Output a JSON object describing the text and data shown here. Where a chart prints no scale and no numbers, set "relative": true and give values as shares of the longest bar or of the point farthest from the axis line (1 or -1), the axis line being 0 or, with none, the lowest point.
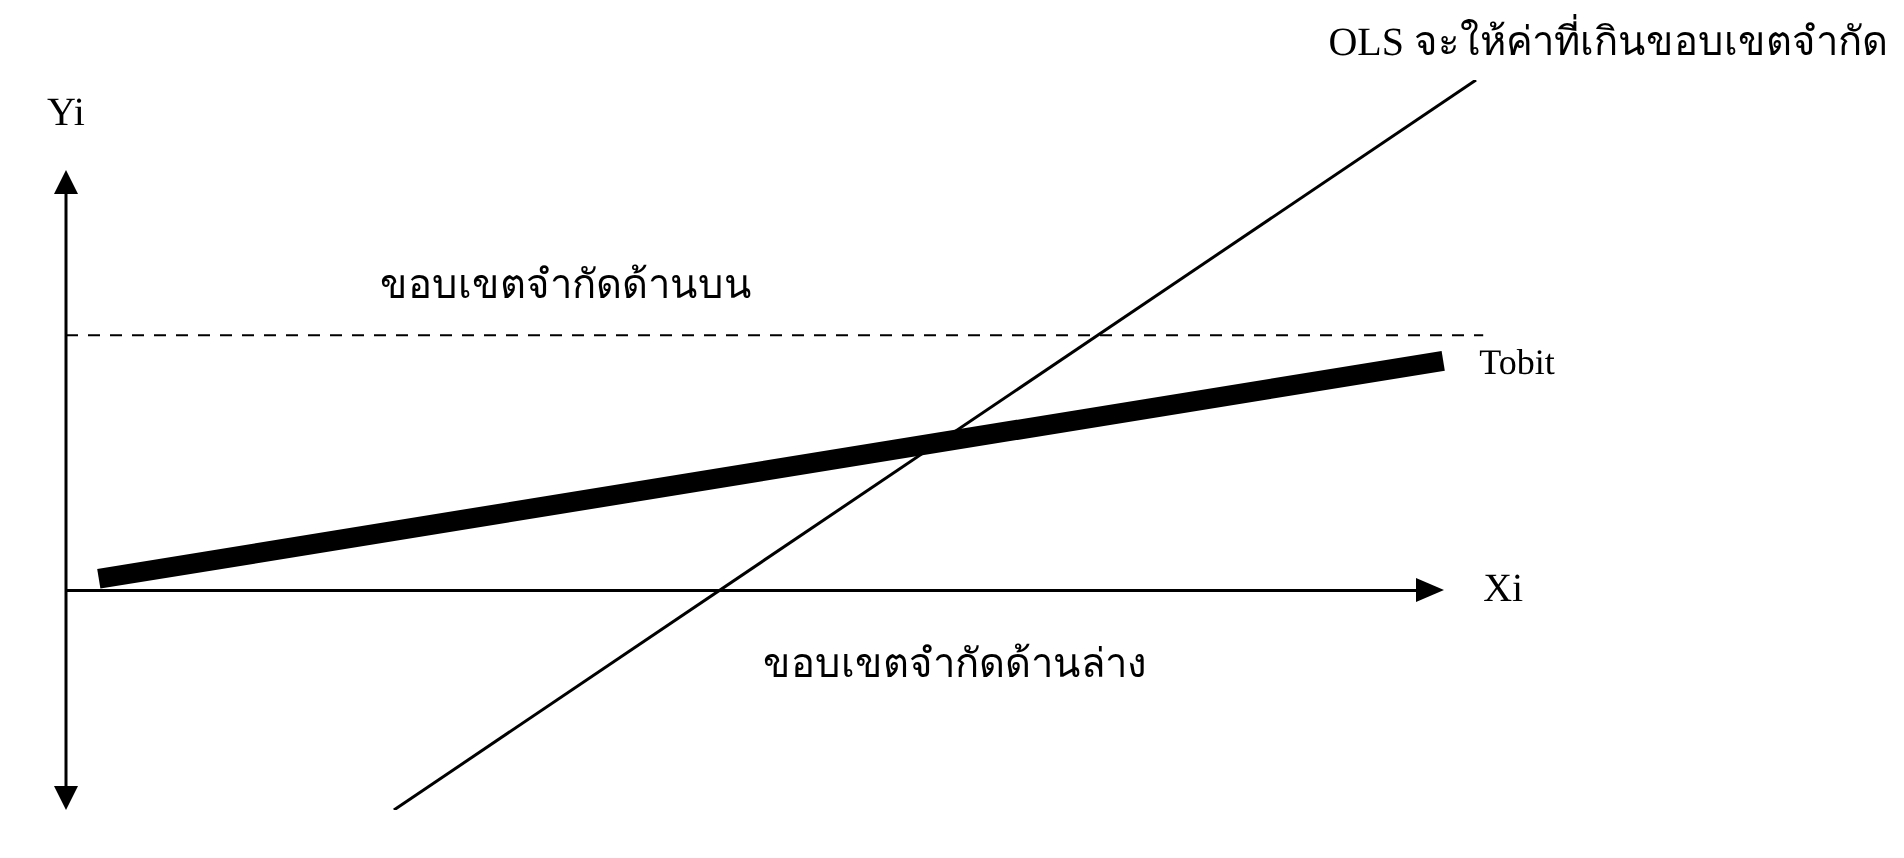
{
  "chart_data": {
    "type": "line",
    "relative": true,
    "xlabel": "Xi",
    "ylabel": "Yi",
    "categories": [
      null,
      null,
      null,
      null,
      null,
      null,
      null,
      null,
      null,
      null,
      null,
      null,
      null,
      null,
      null,
      null,
      null,
      null,
      null,
      null,
      null,
      null,
      null,
      null,
      null,
      null,
      null,
      null,
      null,
      null,
      null,
      null,
      null,
      null,
      null,
      null,
      null,
      null,
      null,
      null,
      null,
      null,
      null,
      null
    ],
    "series": [
      {
        "name": "Tobit",
        "color": "#000000",
        "values": [
          null,
          0.023,
          null,
          null,
          null,
          null,
          null,
          null,
          null,
          null,
          null,
          null,
          null,
          null,
          null,
          null,
          null,
          null,
          null,
          null,
          null,
          null,
          null,
          null,
          null,
          null,
          null,
          null,
          null,
          null,
          null,
          null,
          null,
          null,
          null,
          null,
          null,
          null,
          null,
          null,
          null,
          null,
          0.45,
          null
        ]
      },
      {
        "color": "#000000",
        "values": [
          null,
          null,
          null,
          null,
          null,
          null,
          null,
          null,
          null,
          null,
          -0.43,
          null,
          null,
          null,
          null,
          null,
          null,
          null,
          null,
          null,
          null,
          null,
          null,
          null,
          null,
          null,
          null,
          null,
          null,
          null,
          null,
          null,
          null,
          null,
          null,
          null,
          null,
          null,
          null,
          null,
          null,
          null,
          null,
          1
        ]
      }
    ],
    "ref_lines": [
      {
        "axis": "y",
        "value": 0.5,
        "label": "ขอบเขตจำกัดด้านบน",
        "color": "#000000",
        "line_style": "dashed"
      },
      {
        "axis": "y",
        "value": 0,
        "label": "ขอบเขตจำกัดด้านล่าง",
        "color": "#000000",
        "line_style": "solid"
      }
    ],
    "annotations": [
      "OLS จะให้ค่าที่เกินขอบเขตจำกัด"
    ]
  }
}
